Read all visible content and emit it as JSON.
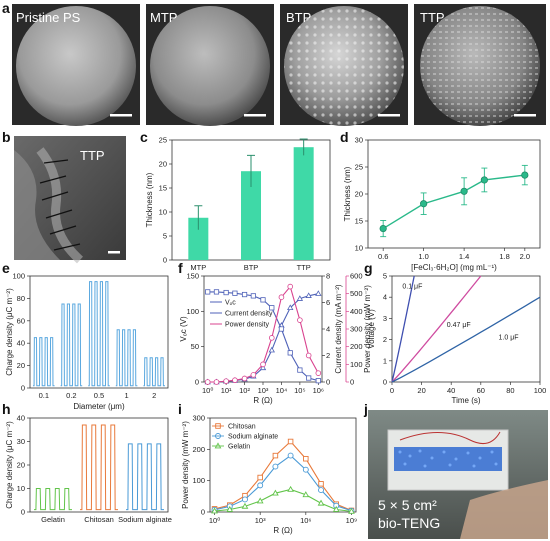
{
  "panels": {
    "a": "a",
    "b": "b",
    "c": "c",
    "d": "d",
    "e": "e",
    "f": "f",
    "g": "g",
    "h": "h",
    "i": "i",
    "j": "j"
  },
  "sem_labels": [
    "Pristine PS",
    "MTP",
    "BTP",
    "TTP"
  ],
  "tem_label": "TTP",
  "photo_label_line1": "5 × 5 cm²",
  "photo_label_line2": "bio-TENG",
  "chart_data": [
    {
      "id": "c",
      "type": "bar",
      "categories": [
        "MTP",
        "BTP",
        "TTP"
      ],
      "values": [
        8.8,
        18.5,
        23.5
      ],
      "errors": [
        2.5,
        3.3,
        1.7
      ],
      "ylabel": "Thickness (nm)",
      "ylim": [
        0,
        25
      ],
      "yticks": [
        0,
        5,
        10,
        15,
        20,
        25
      ],
      "color": "#3fd9a7"
    },
    {
      "id": "d",
      "type": "line",
      "x": [
        0.6,
        1.0,
        1.4,
        1.6,
        2.0
      ],
      "y": [
        13.6,
        18.2,
        20.5,
        22.6,
        23.5
      ],
      "errors": [
        1.5,
        2.0,
        2.5,
        2.2,
        1.8
      ],
      "xlabel": "[FeCl₃·6H₂O] (mg mL⁻¹)",
      "ylabel": "Thickness (nm)",
      "xlim": [
        0.6,
        2.0
      ],
      "ylim": [
        10,
        30
      ],
      "xticks": [
        "0.6",
        "1.0",
        "1.4",
        "1.8",
        "2.0"
      ],
      "yticks": [
        10,
        15,
        20,
        25,
        30
      ],
      "color": "#2ab98a"
    },
    {
      "id": "e",
      "type": "line",
      "categories": [
        "0.1",
        "0.2",
        "0.5",
        "1",
        "2"
      ],
      "values": [
        45,
        75,
        95,
        52,
        27
      ],
      "xlabel": "Diameter (μm)",
      "ylabel": "Charge density (μC m⁻²)",
      "ylim": [
        0,
        100
      ],
      "yticks": [
        0,
        20,
        40,
        60,
        80,
        100
      ],
      "color": "#5aa8df"
    },
    {
      "id": "f",
      "type": "line",
      "x": [
        1,
        3,
        10,
        30,
        100,
        300,
        1000,
        3000,
        10000,
        30000,
        100000,
        300000,
        1000000
      ],
      "series": [
        {
          "name": "Vₒc",
          "axis": "left",
          "values": [
            0,
            0,
            1,
            2,
            4,
            8,
            20,
            45,
            80,
            105,
            118,
            122,
            125
          ],
          "color": "#4f62b8"
        },
        {
          "name": "Current density",
          "axis": "right1",
          "values": [
            6.8,
            6.8,
            6.75,
            6.7,
            6.6,
            6.5,
            6.2,
            5.6,
            4.0,
            2.2,
            0.9,
            0.3,
            0.1
          ],
          "color": "#4f62b8"
        },
        {
          "name": "Power density",
          "axis": "right2",
          "values": [
            0,
            0,
            5,
            10,
            20,
            40,
            100,
            250,
            480,
            540,
            350,
            150,
            50
          ],
          "color": "#d9438f"
        }
      ],
      "xlabel": "R (Ω)",
      "ylabel_left": "Vₒc (V)",
      "ylabel_right1": "Current density (mA m⁻²)",
      "ylabel_right2": "Power density (mW m⁻²)",
      "ylim_left": [
        0,
        150
      ],
      "ylim_right1": [
        0,
        8
      ],
      "ylim_right2": [
        0,
        600
      ],
      "xticks": [
        "10⁰",
        "10¹",
        "10²",
        "10³",
        "10⁴",
        "10⁵",
        "10⁶"
      ],
      "yticks_left": [
        0,
        50,
        100,
        150
      ],
      "yticks_right1": [
        0,
        2,
        4,
        6,
        8
      ],
      "yticks_right2": [
        0,
        100,
        200,
        300,
        400,
        500,
        600
      ]
    },
    {
      "id": "g",
      "type": "line",
      "x": [
        0,
        20,
        40,
        60,
        80,
        100
      ],
      "series": [
        {
          "name": "0.1 μF",
          "x_end": 15,
          "color": "#3f4fb0"
        },
        {
          "name": "0.47 μF",
          "x_end": 60,
          "color": "#cf4ba0"
        },
        {
          "name": "1.0 μF",
          "x_end": 100,
          "y_end": 4,
          "color": "#2f64a6"
        }
      ],
      "xlabel": "Time (s)",
      "ylabel": "Voltage (V)",
      "xlim": [
        0,
        100
      ],
      "ylim": [
        0,
        5
      ],
      "xticks": [
        0,
        20,
        40,
        60,
        80,
        100
      ],
      "yticks": [
        0,
        1,
        2,
        3,
        4,
        5
      ]
    },
    {
      "id": "h",
      "type": "line",
      "categories": [
        "Gelatin",
        "Chitosan",
        "Sodium alginate"
      ],
      "series": [
        {
          "name": "Gelatin",
          "peak": 10,
          "color": "#62c44a"
        },
        {
          "name": "Chitosan",
          "peak": 37,
          "color": "#e8793a"
        },
        {
          "name": "Sodium alginate",
          "peak": 29,
          "color": "#4a9ad6"
        }
      ],
      "ylabel": "Charge density (μC m⁻²)",
      "ylim": [
        0,
        40
      ],
      "yticks": [
        0,
        10,
        20,
        30,
        40
      ]
    },
    {
      "id": "i",
      "type": "line",
      "x": [
        1,
        10,
        100,
        1000,
        10000,
        100000,
        1000000,
        10000000,
        100000000,
        1000000000
      ],
      "series": [
        {
          "name": "Chitosan",
          "values": [
            10,
            22,
            52,
            110,
            180,
            225,
            170,
            90,
            25,
            5
          ],
          "color": "#e8793a"
        },
        {
          "name": "Sodium alginate",
          "values": [
            7,
            18,
            40,
            85,
            145,
            180,
            135,
            70,
            20,
            4
          ],
          "color": "#4a9ad6"
        },
        {
          "name": "Gelatin",
          "values": [
            3,
            8,
            18,
            35,
            60,
            72,
            55,
            28,
            8,
            2
          ],
          "color": "#62c44a"
        }
      ],
      "xlabel": "R (Ω)",
      "ylabel": "Power density (mW m⁻²)",
      "ylim": [
        0,
        300
      ],
      "yticks": [
        0,
        100,
        200,
        300
      ],
      "xticks": [
        "10⁰",
        "10³",
        "10⁶",
        "10⁹"
      ]
    }
  ]
}
